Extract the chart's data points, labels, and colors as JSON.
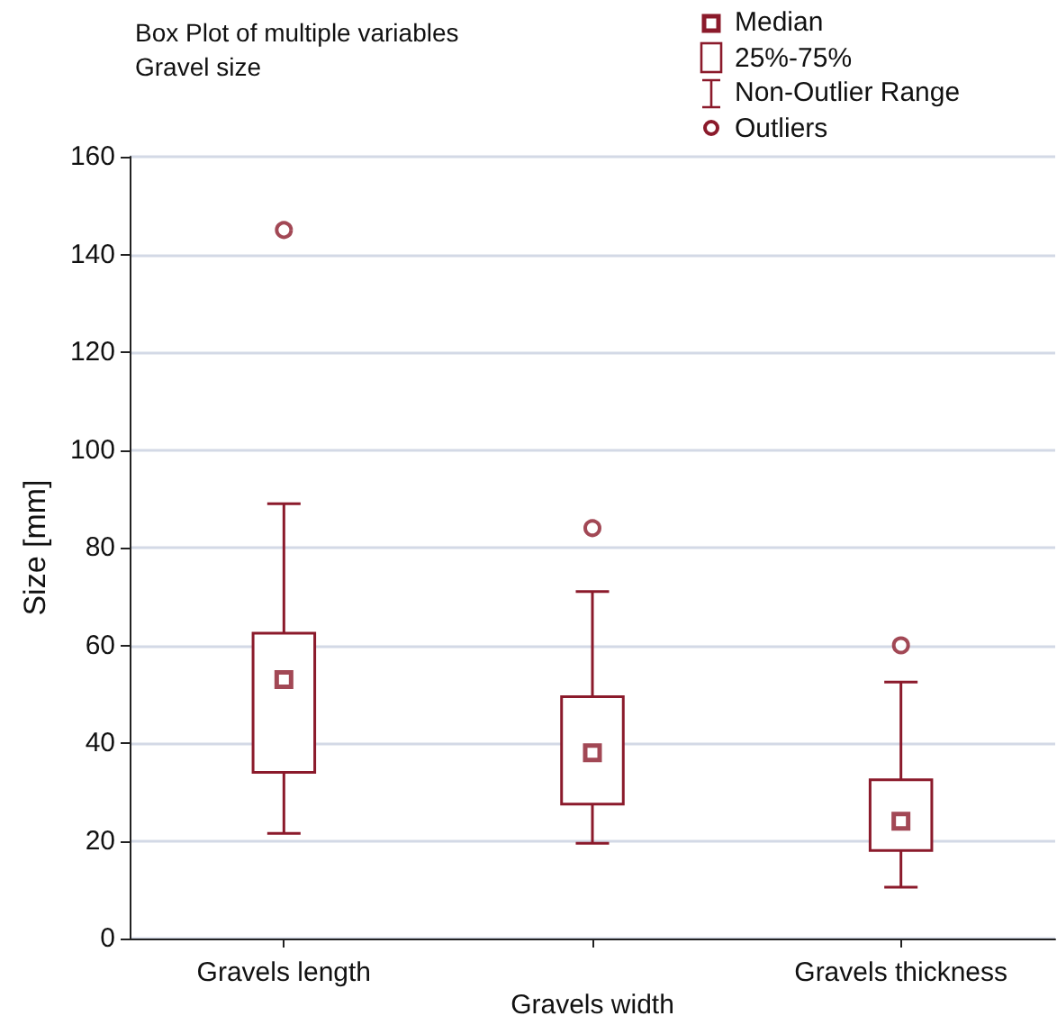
{
  "chart_data": {
    "type": "box",
    "title": "Box Plot of multiple variables",
    "subtitle": "Gravel size",
    "ylabel": "Size [mm]",
    "categories": [
      "Gravels length",
      "Gravels width",
      "Gravels thickness"
    ],
    "series": [
      {
        "color": "#8b1a2b",
        "boxes": [
          {
            "low": 21.5,
            "q1": 34,
            "median": 53,
            "q3": 62.5,
            "high": 89,
            "outliers": [
              145
            ]
          },
          {
            "low": 19.5,
            "q1": 27.5,
            "median": 38,
            "q3": 49.5,
            "high": 71,
            "outliers": [
              84
            ]
          },
          {
            "low": 10.5,
            "q1": 18,
            "median": 24,
            "q3": 32.5,
            "high": 52.5,
            "outliers": [
              60
            ]
          }
        ]
      }
    ],
    "ylim": [
      0,
      160
    ],
    "yticks": [
      0,
      20,
      40,
      60,
      80,
      100,
      120,
      140,
      160
    ],
    "grid": "y",
    "marker": "square",
    "annotations": [
      "Median",
      "25%-75%",
      "Non-Outlier Range",
      "Outliers"
    ]
  }
}
